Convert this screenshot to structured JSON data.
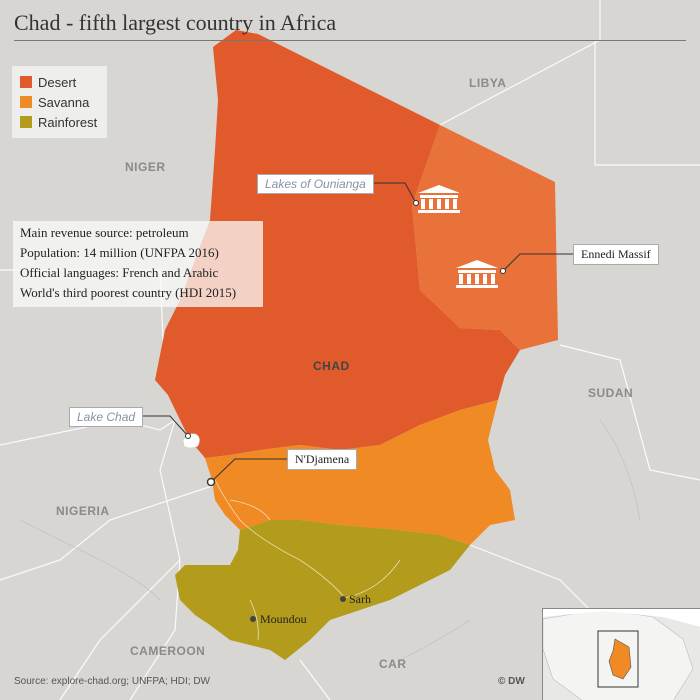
{
  "title": "Chad - fifth largest country in Africa",
  "legend": [
    {
      "label": "Desert",
      "color": "#e05a2c"
    },
    {
      "label": "Savanna",
      "color": "#f08a25"
    },
    {
      "label": "Rainforest",
      "color": "#b39b1b"
    }
  ],
  "facts": [
    "Main revenue source: petroleum",
    "Population: 14 million (UNFPA 2016)",
    "Official languages: French and Arabic",
    "World's third poorest country (HDI 2015)"
  ],
  "countries": {
    "chad": "CHAD",
    "libya": "LIBYA",
    "niger": "NIGER",
    "sudan": "SUDAN",
    "nigeria": "NIGERIA",
    "cameroon": "CAMEROON",
    "car": "CAR"
  },
  "sites": {
    "lakes_of_ounianga": "Lakes of Ounianga",
    "ennedi_massif": "Ennedi Massif",
    "lake_chad": "Lake Chad"
  },
  "cities": {
    "ndjamena": "N'Djamena",
    "sarh": "Sarh",
    "moundou": "Moundou"
  },
  "source": "Source: explore-chad.org; UNFPA; HDI; DW",
  "brand": "© DW",
  "icons": [
    "unesco-icon",
    "city-marker-icon"
  ]
}
